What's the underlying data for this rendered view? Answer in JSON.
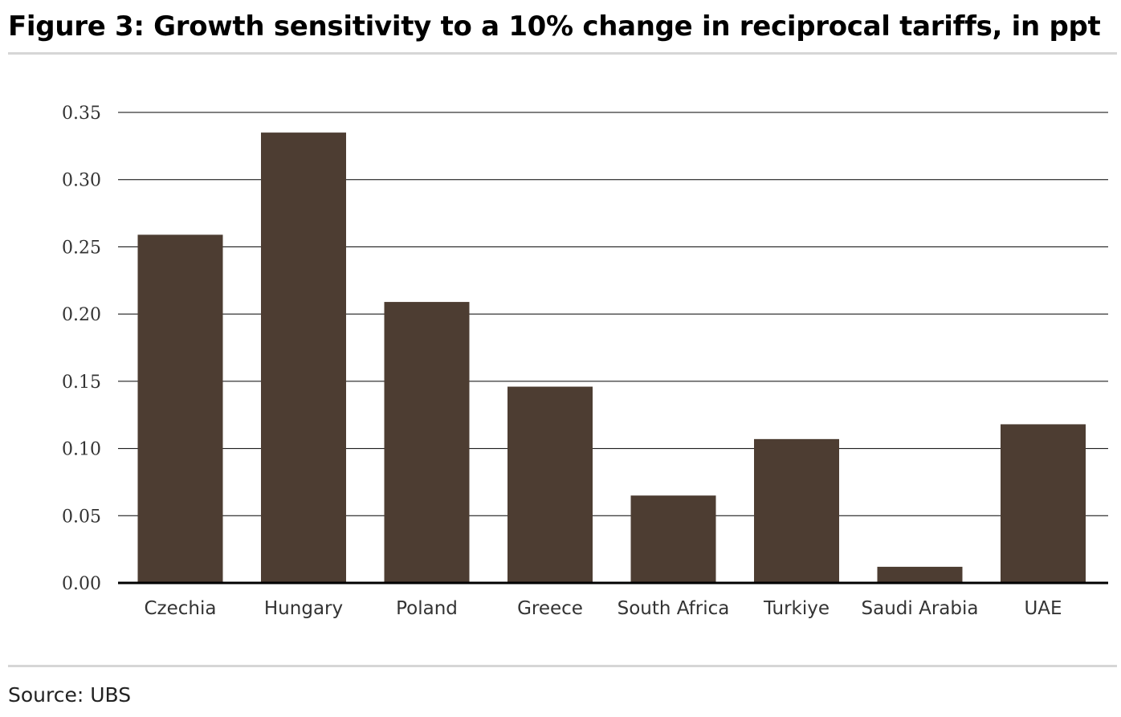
{
  "figure": {
    "title": "Figure 3: Growth sensitivity to a 10% change in reciprocal tariffs, in ppt",
    "source": "Source: UBS"
  },
  "colors": {
    "bar": "#4d3d32",
    "gridline": "#000000",
    "baseline": "#000000",
    "rule": "#d6d6d6"
  },
  "chart_data": {
    "type": "bar",
    "title": "Figure 3: Growth sensitivity to a 10% change in reciprocal tariffs, in ppt",
    "xlabel": "",
    "ylabel": "",
    "categories": [
      "Czechia",
      "Hungary",
      "Poland",
      "Greece",
      "South Africa",
      "Turkiye",
      "Saudi Arabia",
      "UAE"
    ],
    "values": [
      0.259,
      0.335,
      0.209,
      0.146,
      0.065,
      0.107,
      0.012,
      0.118
    ],
    "ylim": [
      0,
      0.35
    ],
    "yticks": [
      "0.00",
      "0.05",
      "0.10",
      "0.15",
      "0.20",
      "0.25",
      "0.30",
      "0.35"
    ],
    "grid": true,
    "legend": "none"
  }
}
